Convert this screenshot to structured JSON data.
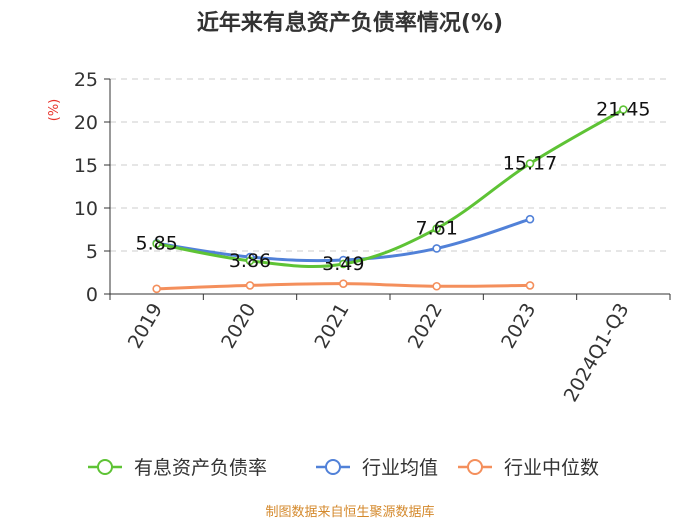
{
  "title": "近年来有息资产负债率情况(%)",
  "source": "制图数据来自恒生聚源数据库",
  "chart_data": {
    "type": "line",
    "title": "近年来有息资产负债率情况(%)",
    "ylabel": "(%)",
    "xlabel": "",
    "ylim": [
      0,
      25
    ],
    "yticks": [
      0,
      5,
      10,
      15,
      20,
      25
    ],
    "grid": true,
    "legend_position": "bottom",
    "categories": [
      "2019",
      "2020",
      "2021",
      "2022",
      "2023",
      "2024Q1-Q3"
    ],
    "series": [
      {
        "name": "有息资产负债率",
        "color": "#5ec335",
        "values": [
          5.85,
          3.86,
          3.49,
          7.61,
          15.17,
          21.45
        ],
        "labels": [
          "5.85",
          "3.86",
          "3.49",
          "7.61",
          "15.17",
          "21.45"
        ]
      },
      {
        "name": "行业均值",
        "color": "#5181d8",
        "values": [
          5.9,
          4.3,
          3.95,
          5.3,
          8.7,
          null
        ],
        "labels": []
      },
      {
        "name": "行业中位数",
        "color": "#f48f5c",
        "values": [
          0.6,
          1.0,
          1.2,
          0.9,
          1.0,
          null
        ],
        "labels": []
      }
    ]
  }
}
